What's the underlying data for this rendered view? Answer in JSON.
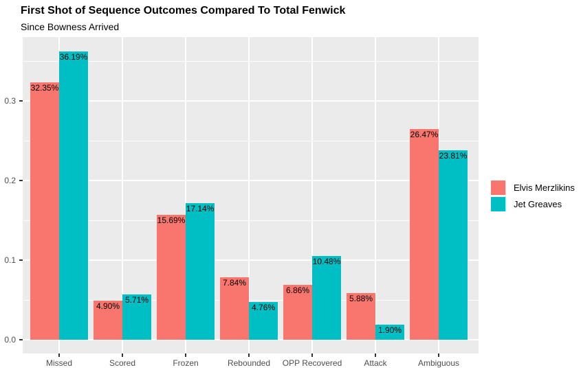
{
  "chart_data": {
    "type": "bar",
    "grouped": true,
    "title": "First Shot of Sequence Outcomes Compared To Total Fenwick",
    "subtitle": "Since Bowness Arrived",
    "xlabel": "",
    "ylabel": "",
    "categories": [
      "Missed",
      "Scored",
      "Frozen",
      "Rebounded",
      "OPP Recovered",
      "Attack",
      "Ambiguous"
    ],
    "series": [
      {
        "name": "Elvis Merzlikins",
        "color": "#F8766D",
        "values": [
          0.3235,
          0.049,
          0.1569,
          0.0784,
          0.0686,
          0.0588,
          0.2647
        ],
        "labels": [
          "32.35%",
          "4.90%",
          "15.69%",
          "7.84%",
          "6.86%",
          "5.88%",
          "26.47%"
        ]
      },
      {
        "name": "Jet Greaves",
        "color": "#00BFC4",
        "values": [
          0.3619,
          0.0571,
          0.1714,
          0.0476,
          0.1048,
          0.019,
          0.2381
        ],
        "labels": [
          "36.19%",
          "5.71%",
          "17.14%",
          "4.76%",
          "10.48%",
          "1.90%",
          "23.81%"
        ]
      }
    ],
    "ylim": [
      0,
      0.38
    ],
    "y_ticks": [
      0.0,
      0.1,
      0.2,
      0.3
    ],
    "y_tick_labels": [
      "0.0",
      "0.1",
      "0.2",
      "0.3"
    ],
    "y_minor_ticks": [
      0.05,
      0.15,
      0.25,
      0.35
    ],
    "legend_position": "right",
    "grid": true,
    "colors": {
      "panel_bg": "#EBEBEB",
      "gridline": "#FFFFFF",
      "axis_text": "#4D4D4D",
      "tick_mark": "#333333",
      "bar_label_text": "#000000"
    }
  }
}
